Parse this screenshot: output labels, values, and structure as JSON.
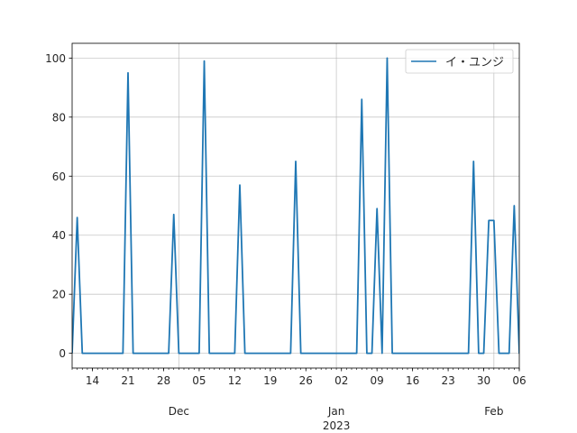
{
  "chart_data": {
    "type": "line",
    "title": "",
    "xlabel": "",
    "ylabel": "",
    "x_start": "2022-11-10",
    "x_end": "2023-02-06",
    "ylim": [
      -5,
      105
    ],
    "grid": true,
    "legend_position": "upper right",
    "series": [
      {
        "name": "イ・ユンジ",
        "color": "#1f77b4",
        "points": [
          [
            "2022-11-10",
            0
          ],
          [
            "2022-11-11",
            46
          ],
          [
            "2022-11-12",
            0
          ],
          [
            "2022-11-20",
            0
          ],
          [
            "2022-11-21",
            95
          ],
          [
            "2022-11-22",
            0
          ],
          [
            "2022-11-29",
            0
          ],
          [
            "2022-11-30",
            47
          ],
          [
            "2022-12-01",
            0
          ],
          [
            "2022-12-05",
            0
          ],
          [
            "2022-12-06",
            99
          ],
          [
            "2022-12-07",
            0
          ],
          [
            "2022-12-12",
            0
          ],
          [
            "2022-12-13",
            57
          ],
          [
            "2022-12-14",
            0
          ],
          [
            "2022-12-23",
            0
          ],
          [
            "2022-12-24",
            65
          ],
          [
            "2022-12-25",
            0
          ],
          [
            "2023-01-05",
            0
          ],
          [
            "2023-01-06",
            86
          ],
          [
            "2023-01-07",
            0
          ],
          [
            "2023-01-08",
            0
          ],
          [
            "2023-01-09",
            49
          ],
          [
            "2023-01-10",
            0
          ],
          [
            "2023-01-11",
            100
          ],
          [
            "2023-01-12",
            0
          ],
          [
            "2023-01-27",
            0
          ],
          [
            "2023-01-28",
            65
          ],
          [
            "2023-01-29",
            0
          ],
          [
            "2023-01-30",
            0
          ],
          [
            "2023-01-31",
            45
          ],
          [
            "2023-02-01",
            45
          ],
          [
            "2023-02-02",
            0
          ],
          [
            "2023-02-04",
            0
          ],
          [
            "2023-02-05",
            50
          ],
          [
            "2023-02-06",
            0
          ],
          [
            "2023-02-07",
            0
          ]
        ]
      }
    ],
    "y_ticks": [
      0,
      20,
      40,
      60,
      80,
      100
    ],
    "x_major_ticks": [
      {
        "date": "2022-11-14",
        "label": "14"
      },
      {
        "date": "2022-11-21",
        "label": "21"
      },
      {
        "date": "2022-11-28",
        "label": "28"
      },
      {
        "date": "2022-12-05",
        "label": "05"
      },
      {
        "date": "2022-12-12",
        "label": "12"
      },
      {
        "date": "2022-12-19",
        "label": "19"
      },
      {
        "date": "2022-12-26",
        "label": "26"
      },
      {
        "date": "2023-01-02",
        "label": "02"
      },
      {
        "date": "2023-01-09",
        "label": "09"
      },
      {
        "date": "2023-01-16",
        "label": "16"
      },
      {
        "date": "2023-01-23",
        "label": "23"
      },
      {
        "date": "2023-01-30",
        "label": "30"
      },
      {
        "date": "2023-02-06",
        "label": "06"
      }
    ],
    "x_month_labels": [
      {
        "date": "2022-12-01",
        "label": "Dec",
        "sub": ""
      },
      {
        "date": "2023-01-01",
        "label": "Jan",
        "sub": "2023"
      },
      {
        "date": "2023-02-01",
        "label": "Feb",
        "sub": ""
      }
    ],
    "colors": {
      "grid": "#b0b0b0",
      "axes": "#000000"
    }
  }
}
